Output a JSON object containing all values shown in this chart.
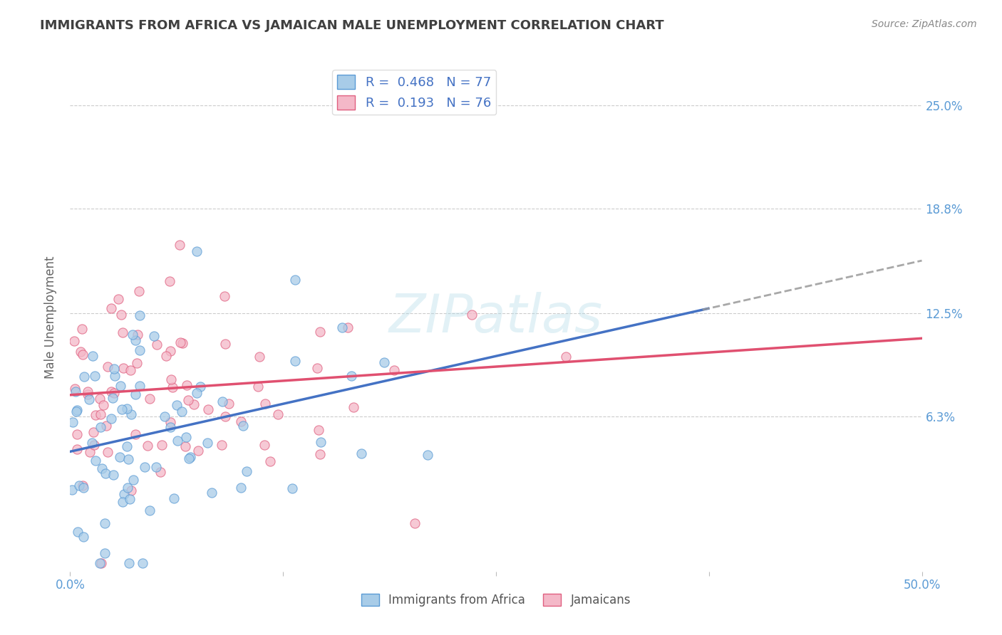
{
  "title": "IMMIGRANTS FROM AFRICA VS JAMAICAN MALE UNEMPLOYMENT CORRELATION CHART",
  "source": "Source: ZipAtlas.com",
  "ylabel": "Male Unemployment",
  "xlim": [
    0.0,
    0.5
  ],
  "ylim": [
    -0.03,
    0.275
  ],
  "yticks": [
    0.063,
    0.125,
    0.188,
    0.25
  ],
  "ytick_labels": [
    "6.3%",
    "12.5%",
    "18.8%",
    "25.0%"
  ],
  "xticks": [
    0.0,
    0.125,
    0.25,
    0.375,
    0.5
  ],
  "xtick_labels": [
    "0.0%",
    "",
    "",
    "",
    "50.0%"
  ],
  "legend_blue_label": "R =  0.468   N = 77",
  "legend_pink_label": "R =  0.193   N = 76",
  "series_blue": {
    "name": "Immigrants from Africa",
    "color": "#a8cce8",
    "edge_color": "#5b9bd5",
    "R": 0.468,
    "N": 77
  },
  "series_pink": {
    "name": "Jamaicans",
    "color": "#f4b8c8",
    "edge_color": "#e06080",
    "R": 0.193,
    "N": 76
  },
  "trend_blue_color": "#4472c4",
  "trend_pink_color": "#e05070",
  "trend_blue_solid_end": 0.375,
  "trend_blue_start_y": 0.042,
  "trend_blue_end_y": 0.128,
  "trend_pink_start_y": 0.076,
  "trend_pink_end_y": 0.11,
  "watermark": "ZIPatlas",
  "background_color": "#ffffff",
  "grid_color": "#cccccc",
  "title_color": "#404040",
  "axis_label_color": "#5b9bd5",
  "legend_R_color": "#4472c4"
}
